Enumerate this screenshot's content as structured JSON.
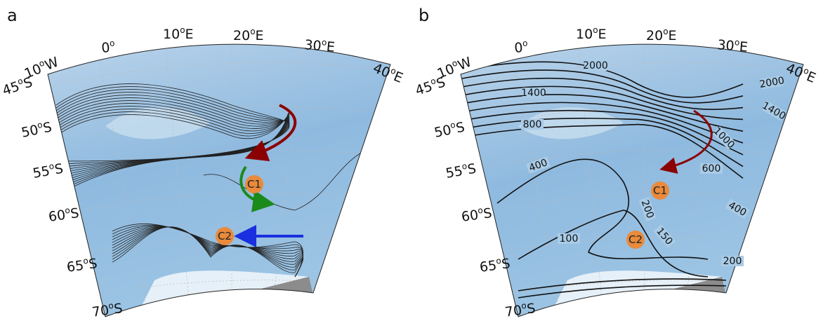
{
  "panels": [
    {
      "label": "a",
      "lon_labels": [
        {
          "num": "10",
          "sup": "o",
          "dir": "W"
        },
        {
          "num": "0",
          "sup": "o"
        },
        {
          "num": "10",
          "sup": "o",
          "dir": "E"
        },
        {
          "num": "20",
          "sup": "o",
          "dir": "E"
        },
        {
          "num": "30",
          "sup": "o",
          "dir": "E"
        },
        {
          "num": "40",
          "sup": "o",
          "dir": "E"
        }
      ],
      "lat_labels": [
        {
          "num": "45",
          "sup": "o",
          "dir": "S"
        },
        {
          "num": "50",
          "sup": "o",
          "dir": "S"
        },
        {
          "num": "55",
          "sup": "o",
          "dir": "S"
        },
        {
          "num": "60",
          "sup": "o",
          "dir": "S"
        },
        {
          "num": "65",
          "sup": "o",
          "dir": "S"
        },
        {
          "num": "70",
          "sup": "o",
          "dir": "S"
        }
      ],
      "markers": [
        "C1",
        "C2"
      ]
    },
    {
      "label": "b",
      "lon_labels": [
        {
          "num": "10",
          "sup": "o",
          "dir": "W"
        },
        {
          "num": "0",
          "sup": "o"
        },
        {
          "num": "10",
          "sup": "o",
          "dir": "E"
        },
        {
          "num": "20",
          "sup": "o",
          "dir": "E"
        },
        {
          "num": "30",
          "sup": "o",
          "dir": "E"
        },
        {
          "num": "40",
          "sup": "o",
          "dir": "E"
        }
      ],
      "lat_labels": [
        {
          "num": "45",
          "sup": "o",
          "dir": "S"
        },
        {
          "num": "50",
          "sup": "o",
          "dir": "S"
        },
        {
          "num": "55",
          "sup": "o",
          "dir": "S"
        },
        {
          "num": "60",
          "sup": "o",
          "dir": "S"
        },
        {
          "num": "65",
          "sup": "o",
          "dir": "S"
        },
        {
          "num": "70",
          "sup": "o",
          "dir": "S"
        }
      ],
      "markers": [
        "C1",
        "C2"
      ],
      "contour_labels": [
        "2000",
        "2000",
        "1400",
        "1400",
        "800",
        "1000",
        "400",
        "600",
        "200",
        "400",
        "150",
        "100",
        "200"
      ]
    }
  ]
}
